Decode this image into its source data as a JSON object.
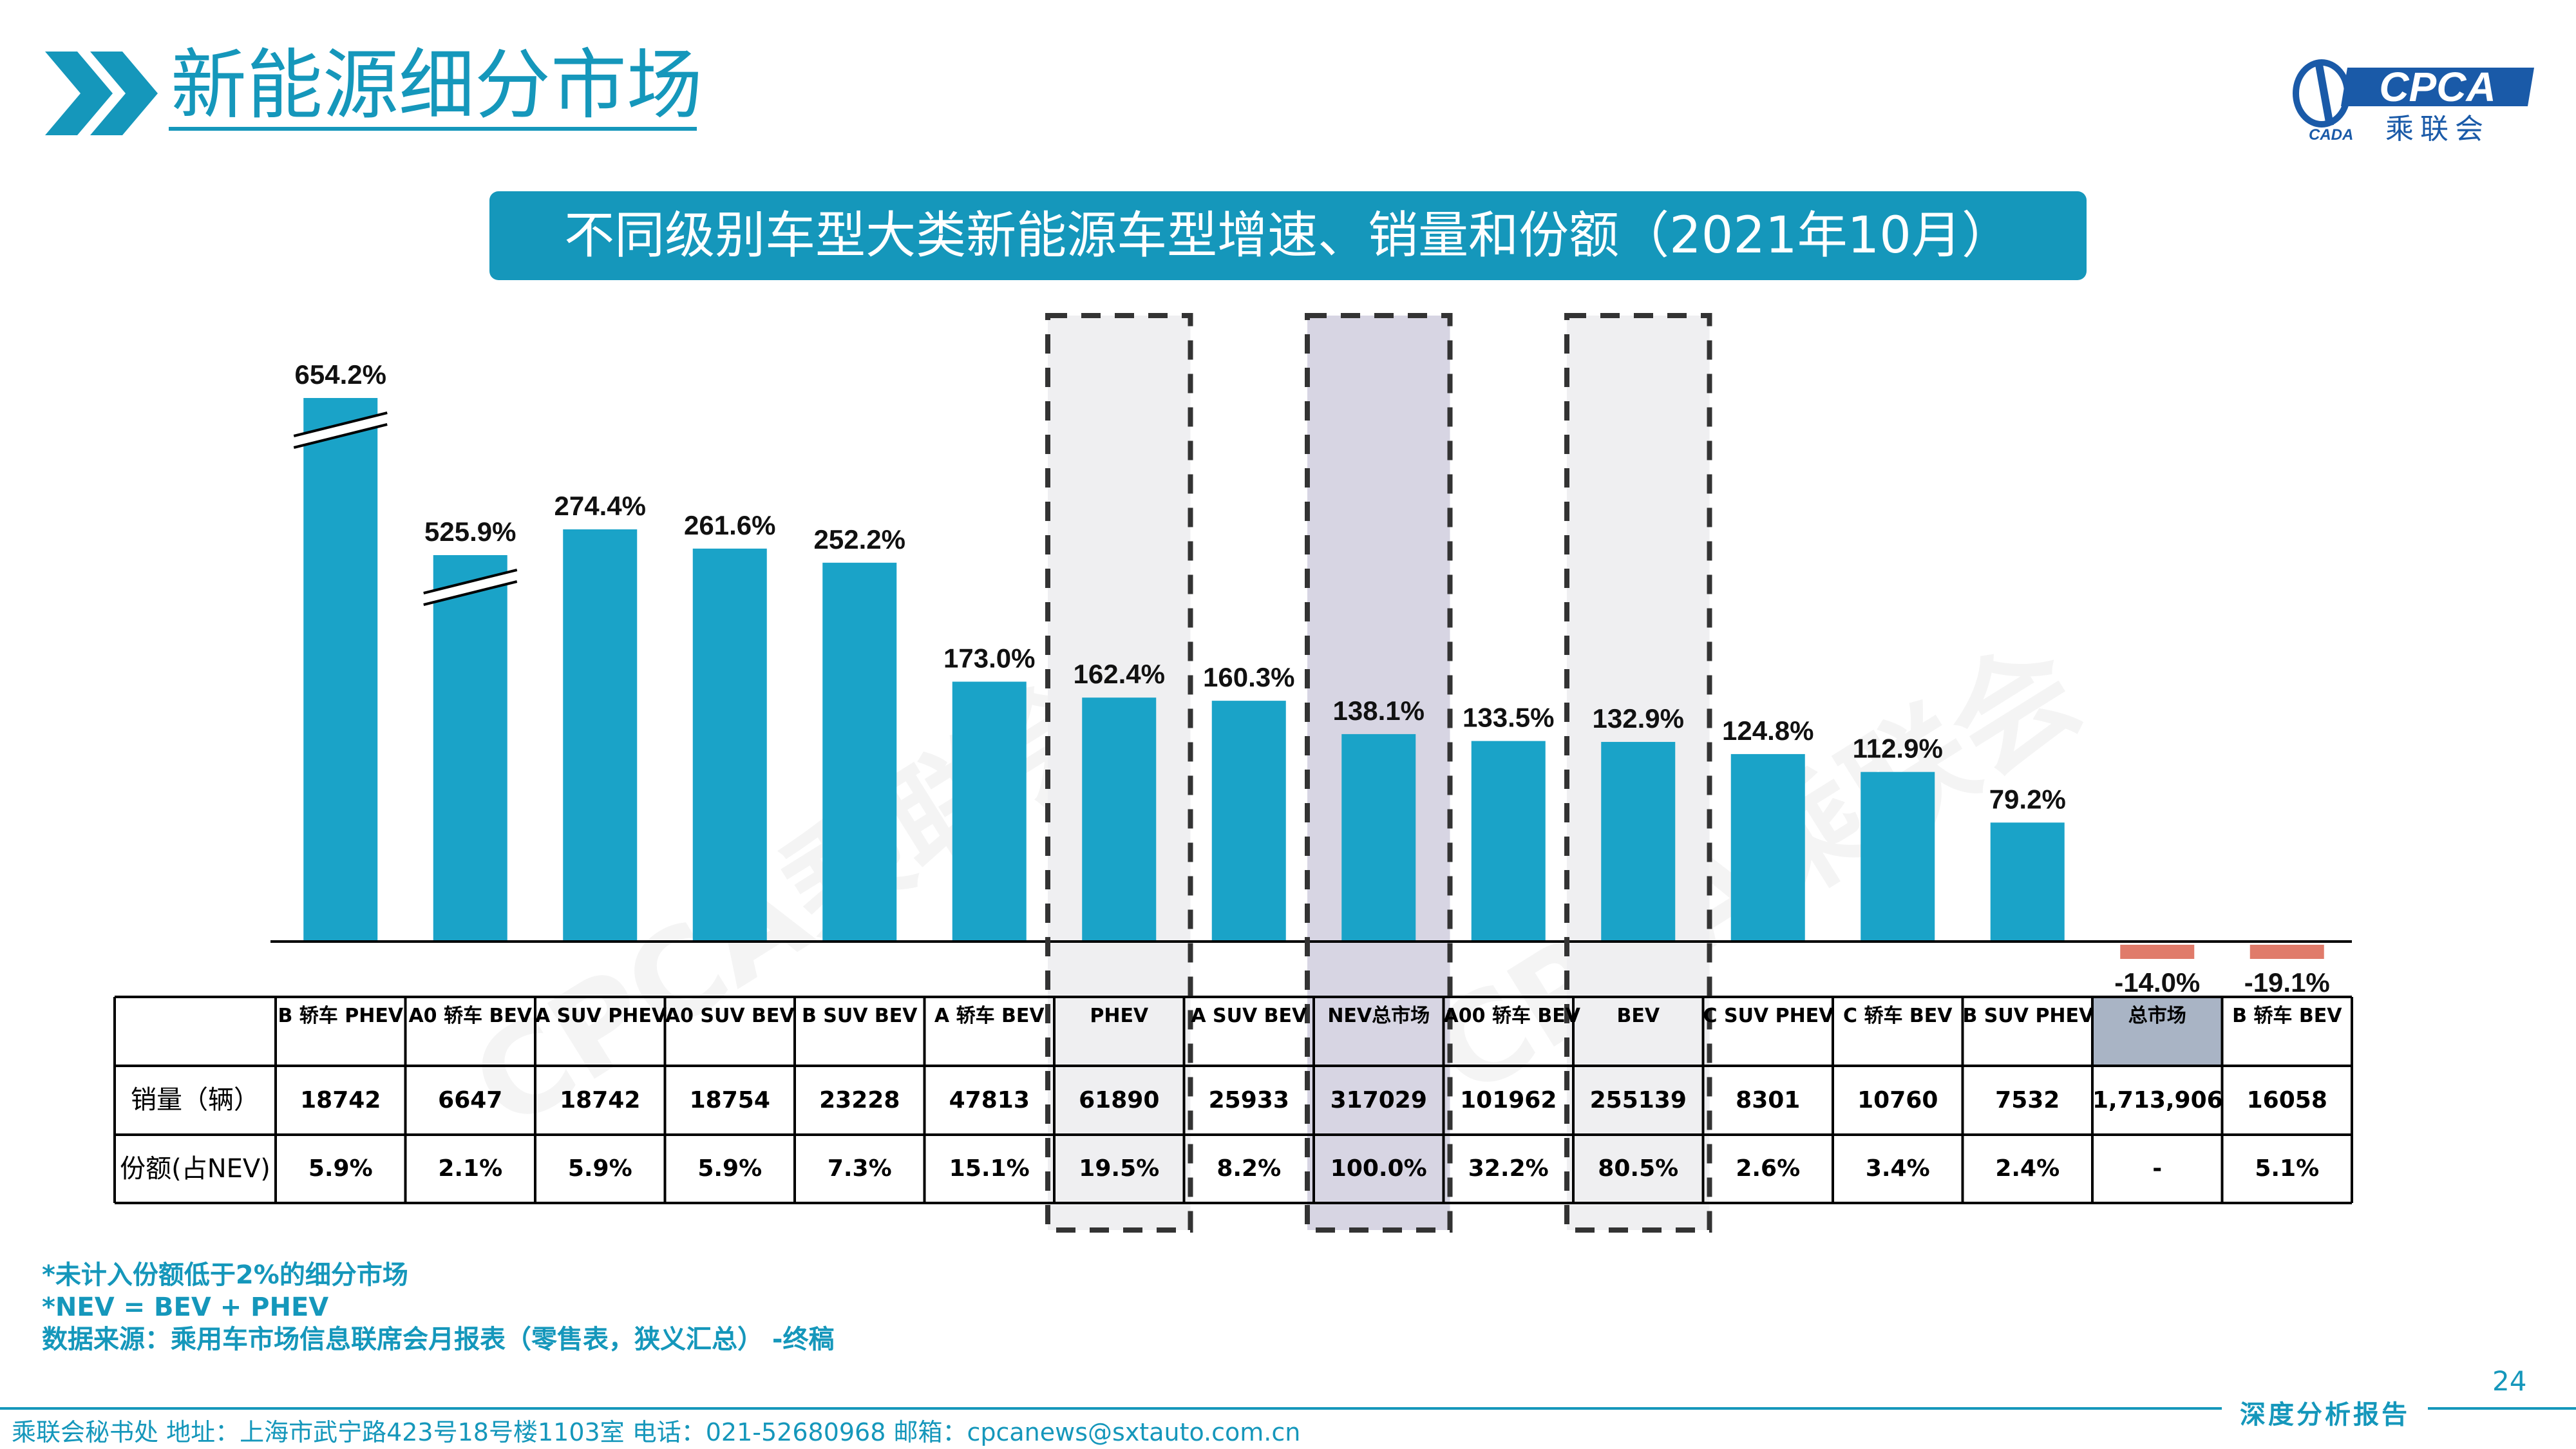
{
  "header": {
    "title": "新能源细分市场"
  },
  "logo": {
    "text": "CPCA",
    "subtext": "乘联会",
    "small": "CADA"
  },
  "subtitle": "不同级别车型大类新能源车型增速、销量和份额（2021年10月）",
  "watermark": "CPCA乘联会",
  "colors": {
    "bar_positive": "#1aa3c8",
    "bar_negative": "#e07b6a",
    "highlight_total": "#a9b4c5",
    "highlight_nev": "#d7d5e3",
    "highlight_group": "#efeff1",
    "accent": "#1597bb"
  },
  "chart_data": {
    "type": "bar",
    "categories": [
      "B 轿车 PHEV",
      "A0 轿车 BEV",
      "A SUV PHEV",
      "A0 SUV BEV",
      "B SUV BEV",
      "A 轿车 BEV",
      "PHEV",
      "A SUV BEV",
      "NEV总市场",
      "A00 轿车 BEV",
      "BEV",
      "C SUV PHEV",
      "C 轿车 BEV",
      "B SUV PHEV",
      "总市场",
      "B 轿车 BEV"
    ],
    "values": [
      654.2,
      525.9,
      274.4,
      261.6,
      252.2,
      173.0,
      162.4,
      160.3,
      138.1,
      133.5,
      132.9,
      124.8,
      112.9,
      79.2,
      -14.0,
      -19.1
    ],
    "value_labels": [
      "654.2%",
      "525.9%",
      "274.4%",
      "261.6%",
      "252.2%",
      "173.0%",
      "162.4%",
      "160.3%",
      "138.1%",
      "133.5%",
      "132.9%",
      "124.8%",
      "112.9%",
      "79.2%",
      "-14.0%",
      "-19.1%"
    ],
    "broken_axis_bars": [
      0,
      1
    ],
    "highlighted_columns": [
      "PHEV",
      "NEV总市场",
      "BEV"
    ],
    "table": {
      "row_labels": [
        "销量（辆）",
        "份额(占NEV)"
      ],
      "sales": [
        "18742",
        "6647",
        "18742",
        "18754",
        "23228",
        "47813",
        "61890",
        "25933",
        "317029",
        "101962",
        "255139",
        "8301",
        "10760",
        "7532",
        "1,713,906",
        "16058"
      ],
      "share": [
        "5.9%",
        "2.1%",
        "5.9%",
        "5.9%",
        "7.3%",
        "15.1%",
        "19.5%",
        "8.2%",
        "100.0%",
        "32.2%",
        "80.5%",
        "2.6%",
        "3.4%",
        "2.4%",
        "-",
        "5.1%"
      ]
    }
  },
  "notes": [
    "*未计入份额低于2%的细分市场",
    "*NEV = BEV + PHEV",
    "数据来源：乘用车市场信息联席会月报表（零售表，狭义汇总） -终稿"
  ],
  "page_number": "24",
  "footer": {
    "text": "乘联会秘书处   地址：上海市武宁路423号18号楼1103室  电话：021-52680968   邮箱：cpcanews@sxtauto.com.cn",
    "tag": "深度分析报告"
  }
}
